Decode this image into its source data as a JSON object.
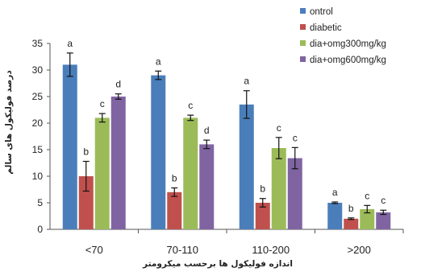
{
  "chart_data": {
    "type": "bar",
    "categories": [
      "<70",
      "70-110",
      "110-200",
      ">200"
    ],
    "series": [
      {
        "name": "ontrol",
        "color": "#4a7ebb",
        "values": [
          31,
          29,
          23.5,
          5
        ],
        "errors": [
          2.2,
          0.8,
          2.6,
          0.15
        ],
        "labels": [
          "a",
          "a",
          "a",
          "a"
        ]
      },
      {
        "name": "diabetic",
        "color": "#c0504d",
        "values": [
          10,
          7,
          5,
          2
        ],
        "errors": [
          2.8,
          0.8,
          0.8,
          0.15
        ],
        "labels": [
          "b",
          "b",
          "b",
          "b"
        ]
      },
      {
        "name": "dia+omg300mg/kg",
        "color": "#9bbb59",
        "values": [
          21,
          21,
          15.3,
          3.8
        ],
        "errors": [
          0.8,
          0.5,
          2,
          0.7
        ],
        "labels": [
          "c",
          "c",
          "c",
          "c"
        ]
      },
      {
        "name": "dia+omg600mg/kg",
        "color": "#8064a2",
        "values": [
          25,
          16,
          13.4,
          3.2
        ],
        "errors": [
          0.5,
          0.8,
          2,
          0.4
        ],
        "labels": [
          "d",
          "d",
          "c",
          "c"
        ]
      }
    ],
    "xlabel": "اندازه فولیکول ها برحسب میکرومتر",
    "ylabel": "درصد فولیکول های سالم",
    "ylim": [
      0,
      35
    ],
    "yticks": [
      0,
      5,
      10,
      15,
      20,
      25,
      30,
      35
    ],
    "grid": false,
    "legend_position": "top-right"
  }
}
